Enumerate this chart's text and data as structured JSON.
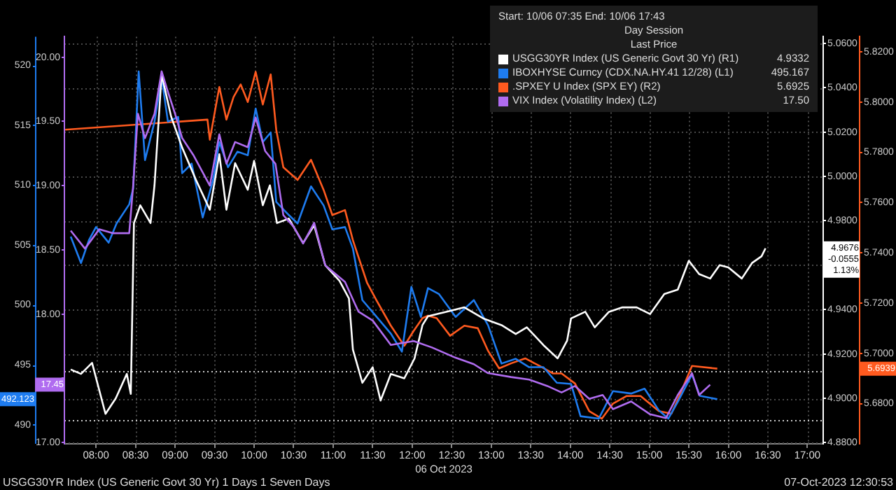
{
  "chart_data": [
    {
      "type": "line",
      "xlabel": "06 Oct 2023",
      "legend_title": "Start: 10/06 07:35 End: 10/06 17:43\nDay Session\nLast Price",
      "legend": "top right",
      "grid": true,
      "xlim": [
        7.6,
        17.2
      ],
      "xticks": [
        {
          "value": 8,
          "label": "08:00"
        },
        {
          "value": 8.5,
          "label": "08:30"
        },
        {
          "value": 9,
          "label": "09:00"
        },
        {
          "value": 9.5,
          "label": "09:30"
        },
        {
          "value": 10,
          "label": "10:00"
        },
        {
          "value": 10.5,
          "label": "10:30"
        },
        {
          "value": 11,
          "label": "11:00"
        },
        {
          "value": 11.5,
          "label": "11:30"
        },
        {
          "value": 12,
          "label": "12:00"
        },
        {
          "value": 12.5,
          "label": "12:30"
        },
        {
          "value": 13,
          "label": "13:00"
        },
        {
          "value": 13.5,
          "label": "13:30"
        },
        {
          "value": 14,
          "label": "14:00"
        },
        {
          "value": 14.5,
          "label": "14:30"
        },
        {
          "value": 15,
          "label": "15:00"
        },
        {
          "value": 15.5,
          "label": "15:30"
        },
        {
          "value": 16,
          "label": "16:00"
        },
        {
          "value": 16.5,
          "label": "16:30"
        },
        {
          "value": 17,
          "label": "17:00"
        }
      ],
      "ylim": [
        488.4,
        522.4
      ],
      "yticks": [
        490,
        495,
        500,
        505,
        510,
        515,
        520
      ],
      "y2lim": [
        4.8795,
        5.063
      ],
      "y2ticks": [
        {
          "value": 4.88,
          "label": "4.8800"
        },
        {
          "value": 4.9,
          "label": "4.9000"
        },
        {
          "value": 4.92,
          "label": "4.9200"
        },
        {
          "value": 4.94,
          "label": "4.9400"
        },
        {
          "value": 4.96,
          "label": null
        },
        {
          "value": 4.98,
          "label": "4.9800"
        },
        {
          "value": 5,
          "label": "5.0000"
        },
        {
          "value": 5.02,
          "label": "5.0200"
        },
        {
          "value": 5.04,
          "label": "5.0400"
        },
        {
          "value": 5.06,
          "label": "5.0600"
        }
      ],
      "y3lim": [
        5.664,
        5.826
      ],
      "y3ticks": [
        {
          "value": 5.68,
          "label": "5.6800"
        },
        {
          "value": 5.7,
          "label": "5.7000"
        },
        {
          "value": 5.72,
          "label": "5.7200"
        },
        {
          "value": 5.74,
          "label": "5.7400"
        },
        {
          "value": 5.76,
          "label": "5.7600"
        },
        {
          "value": 5.78,
          "label": "5.7800"
        },
        {
          "value": 5.8,
          "label": "5.8000"
        },
        {
          "value": 5.82,
          "label": "5.8200"
        }
      ],
      "ref_lines": [
        {
          "axis": "y2",
          "value": 4.9125,
          "color": "#cccccc",
          "line_style": "dotted"
        },
        {
          "axis": "y2",
          "value": 4.8905,
          "color": "#cccccc",
          "line_style": "dotted"
        }
      ],
      "series": [
        {
          "name": "USGG30YR Index (US Generic Govt 30 Yr) (R1)",
          "color": "#ffffff",
          "axis": "y2",
          "x": [
            7.68,
            7.81,
            7.95,
            8.12,
            8.25,
            8.39,
            8.44,
            8.48,
            8.56,
            8.69,
            8.74,
            8.83,
            8.88,
            8.95,
            9.09,
            9.27,
            9.44,
            9.56,
            9.65,
            9.76,
            9.92,
            10.0,
            10.11,
            10.2,
            10.29,
            10.44,
            10.62,
            10.76,
            10.9,
            11.08,
            11.2,
            11.25,
            11.37,
            11.5,
            11.6,
            11.73,
            11.9,
            12.03,
            12.13,
            12.2,
            12.43,
            12.66,
            12.9,
            13.13,
            13.31,
            13.45,
            13.66,
            13.84,
            13.96,
            14.01,
            14.19,
            14.31,
            14.49,
            14.66,
            14.84,
            15.01,
            15.19,
            15.36,
            15.5,
            15.63,
            15.77,
            15.89,
            16.0,
            16.17,
            16.3,
            16.42,
            16.47
          ],
          "values": [
            4.913,
            4.911,
            4.916,
            4.893,
            4.9,
            4.911,
            4.902,
            4.979,
            4.987,
            4.979,
            4.996,
            5.046,
            5.038,
            5.027,
            5.013,
            4.998,
            4.985,
            5.01,
            4.985,
            5.006,
            4.994,
            5.007,
            4.987,
            4.996,
            4.979,
            4.981,
            4.97,
            4.978,
            4.96,
            4.953,
            4.945,
            4.922,
            4.907,
            4.914,
            4.899,
            4.911,
            4.909,
            4.918,
            4.933,
            4.937,
            4.939,
            4.941,
            4.936,
            4.933,
            4.929,
            4.932,
            4.924,
            4.918,
            4.926,
            4.936,
            4.939,
            4.932,
            4.939,
            4.941,
            4.941,
            4.938,
            4.947,
            4.949,
            4.962,
            4.956,
            4.954,
            4.96,
            4.959,
            4.954,
            4.961,
            4.964,
            4.9676
          ]
        },
        {
          "name": "IBOXHYSE Curncy (CDX.NA.HY.41 12/28) (L1)",
          "color": "#1e7cf0",
          "x": [
            7.68,
            7.81,
            7.91,
            8.0,
            8.16,
            8.26,
            8.42,
            8.47,
            8.54,
            8.62,
            8.74,
            8.83,
            8.91,
            9.04,
            9.09,
            9.21,
            9.35,
            9.48,
            9.56,
            9.67,
            9.79,
            9.92,
            10.02,
            10.11,
            10.21,
            10.28,
            10.44,
            10.55,
            10.72,
            10.88,
            10.99,
            11.15,
            11.25,
            11.37,
            11.55,
            11.73,
            11.87,
            11.99,
            12.11,
            12.2,
            12.34,
            12.55,
            12.78,
            12.96,
            13.13,
            13.31,
            13.48,
            13.66,
            13.83,
            14.01,
            14.13,
            14.36,
            14.54,
            14.77,
            14.94,
            15.12,
            15.24,
            15.36,
            15.54,
            15.64,
            15.86
          ],
          "values": [
            505.7,
            503.5,
            505.4,
            506.5,
            505.2,
            506.8,
            508.4,
            509.7,
            519.5,
            512.1,
            515.3,
            519.0,
            515.3,
            515.7,
            511.0,
            511.8,
            507.3,
            510.4,
            513.6,
            511.5,
            512.8,
            512.5,
            516.4,
            513.6,
            514.4,
            508.6,
            507.5,
            506.8,
            509.9,
            508.3,
            506.3,
            506.5,
            504.7,
            500.4,
            499.0,
            497.6,
            496.1,
            501.5,
            499.0,
            501.4,
            500.9,
            499.0,
            500.4,
            498.3,
            495.1,
            495.5,
            494.8,
            494.8,
            493.5,
            493.4,
            490.7,
            490.5,
            492.8,
            492.6,
            493.0,
            491.2,
            490.5,
            491.9,
            494.2,
            492.4,
            492.123
          ]
        },
        {
          "name": ".SPXEY U Index (SPX EY) (R2)",
          "color": "#ff5a1f",
          "axis": "y3",
          "x": [
            7.61,
            9.41,
            9.44,
            9.56,
            9.65,
            9.74,
            9.83,
            9.92,
            10.02,
            10.11,
            10.21,
            10.28,
            10.37,
            10.55,
            10.72,
            10.88,
            10.99,
            11.15,
            11.25,
            11.43,
            11.55,
            11.73,
            11.9,
            12.02,
            12.13,
            12.2,
            12.31,
            12.48,
            12.66,
            12.83,
            12.96,
            13.1,
            13.25,
            13.43,
            13.61,
            13.78,
            13.89,
            14.06,
            14.24,
            14.4,
            14.54,
            14.71,
            14.89,
            15.12,
            15.28,
            15.38,
            15.54,
            15.86
          ],
          "values": [
            5.789,
            5.793,
            5.785,
            5.806,
            5.793,
            5.802,
            5.807,
            5.8,
            5.812,
            5.799,
            5.811,
            5.789,
            5.774,
            5.769,
            5.777,
            5.765,
            5.755,
            5.757,
            5.745,
            5.728,
            5.721,
            5.711,
            5.703,
            5.709,
            5.714,
            5.715,
            5.714,
            5.707,
            5.711,
            5.71,
            5.701,
            5.694,
            5.696,
            5.698,
            5.695,
            5.692,
            5.692,
            5.688,
            5.677,
            5.674,
            5.68,
            5.683,
            5.683,
            5.677,
            5.676,
            5.683,
            5.695,
            5.6939
          ]
        }
      ],
      "annotations": [
        "USGG30YR Index (US Generic Govt 30 Yr) 1 Days 1 Seven Days",
        "07-Oct-2023 12:30:53",
        "4.9332",
        "495.167",
        "5.6925",
        "4.9676\n-0.0555\n1.13%",
        "492.123",
        "5.6939"
      ]
    },
    {
      "type": "line",
      "tick_labels": "y",
      "legend": "top right",
      "xlim": [
        7.6,
        17.2
      ],
      "ylim": [
        16.99,
        20.16
      ],
      "yticks": [
        {
          "value": 17,
          "label": "17.00"
        },
        {
          "value": 17.5,
          "label": null
        },
        {
          "value": 18,
          "label": "18.00"
        },
        {
          "value": 18.5,
          "label": "18.50"
        },
        {
          "value": 19,
          "label": "19.00"
        },
        {
          "value": 19.5,
          "label": "19.50"
        },
        {
          "value": 20,
          "label": "20.00"
        }
      ],
      "series": [
        {
          "name": "VIX Index (Volatility Index) (L2)",
          "color": "#b06cf0",
          "x": [
            7.68,
            7.86,
            8.04,
            8.21,
            8.42,
            8.47,
            8.53,
            8.62,
            8.74,
            8.83,
            8.91,
            9.0,
            9.09,
            9.23,
            9.44,
            9.56,
            9.65,
            9.76,
            9.92,
            10.02,
            10.14,
            10.27,
            10.37,
            10.5,
            10.62,
            10.76,
            10.9,
            11.15,
            11.32,
            11.5,
            11.73,
            12.02,
            12.25,
            12.55,
            12.78,
            12.96,
            13.25,
            13.48,
            13.71,
            13.89,
            14.06,
            14.24,
            14.41,
            14.54,
            14.77,
            15.01,
            15.21,
            15.36,
            15.54,
            15.63,
            15.77
          ],
          "values": [
            18.65,
            18.51,
            18.66,
            18.63,
            18.63,
            19.0,
            19.56,
            19.37,
            19.56,
            19.89,
            19.73,
            19.56,
            19.37,
            19.24,
            19.0,
            19.4,
            19.17,
            19.34,
            19.3,
            19.53,
            19.27,
            19.17,
            18.77,
            18.68,
            18.55,
            18.71,
            18.38,
            18.25,
            18.02,
            17.95,
            17.76,
            17.79,
            17.74,
            17.66,
            17.61,
            17.54,
            17.51,
            17.49,
            17.44,
            17.39,
            17.44,
            17.34,
            17.37,
            17.26,
            17.32,
            17.22,
            17.19,
            17.37,
            17.54,
            17.37,
            17.45
          ]
        }
      ],
      "annotations": [
        "17.50",
        "17.45"
      ]
    }
  ]
}
